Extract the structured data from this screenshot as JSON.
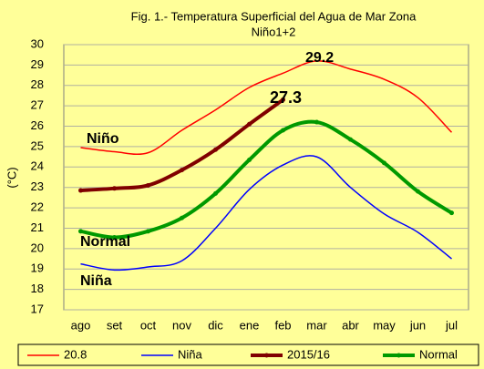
{
  "chart_data": {
    "type": "line",
    "title": "Fig. 1.- Temperatura Superficial del Agua de Mar Zona",
    "subtitle": "Niño1+2",
    "y_label": "(°C)",
    "categories": [
      "ago",
      "set",
      "oct",
      "nov",
      "dic",
      "ene",
      "feb",
      "mar",
      "abr",
      "may",
      "jun",
      "jul"
    ],
    "series": [
      {
        "name": "20.8",
        "color": "#ff0000",
        "values": [
          24.95,
          24.75,
          24.7,
          25.8,
          26.8,
          27.9,
          28.6,
          29.2,
          28.8,
          28.3,
          27.4,
          25.7
        ]
      },
      {
        "name": "Niña",
        "color": "#0000ff",
        "values": [
          19.25,
          18.95,
          19.1,
          19.4,
          21.0,
          22.9,
          24.1,
          24.5,
          23.0,
          21.7,
          20.8,
          19.5
        ]
      },
      {
        "name": "2015/16",
        "color": "#800000",
        "values": [
          22.85,
          22.95,
          23.1,
          23.85,
          24.85,
          26.1,
          27.3,
          null,
          null,
          null,
          null,
          null
        ]
      },
      {
        "name": "Normal",
        "color": "#009900",
        "values": [
          20.85,
          20.55,
          20.85,
          21.5,
          22.7,
          24.35,
          25.8,
          26.2,
          25.35,
          24.2,
          22.8,
          21.75
        ]
      }
    ],
    "annotations": [
      "29.2",
      "27.3",
      "Niño",
      "Normal",
      "Niña"
    ],
    "ylim": [
      17,
      30
    ],
    "yticks": [
      17,
      18,
      19,
      20,
      21,
      22,
      23,
      24,
      25,
      26,
      27,
      28,
      29,
      30
    ],
    "grid": true,
    "legend": "bottom"
  }
}
